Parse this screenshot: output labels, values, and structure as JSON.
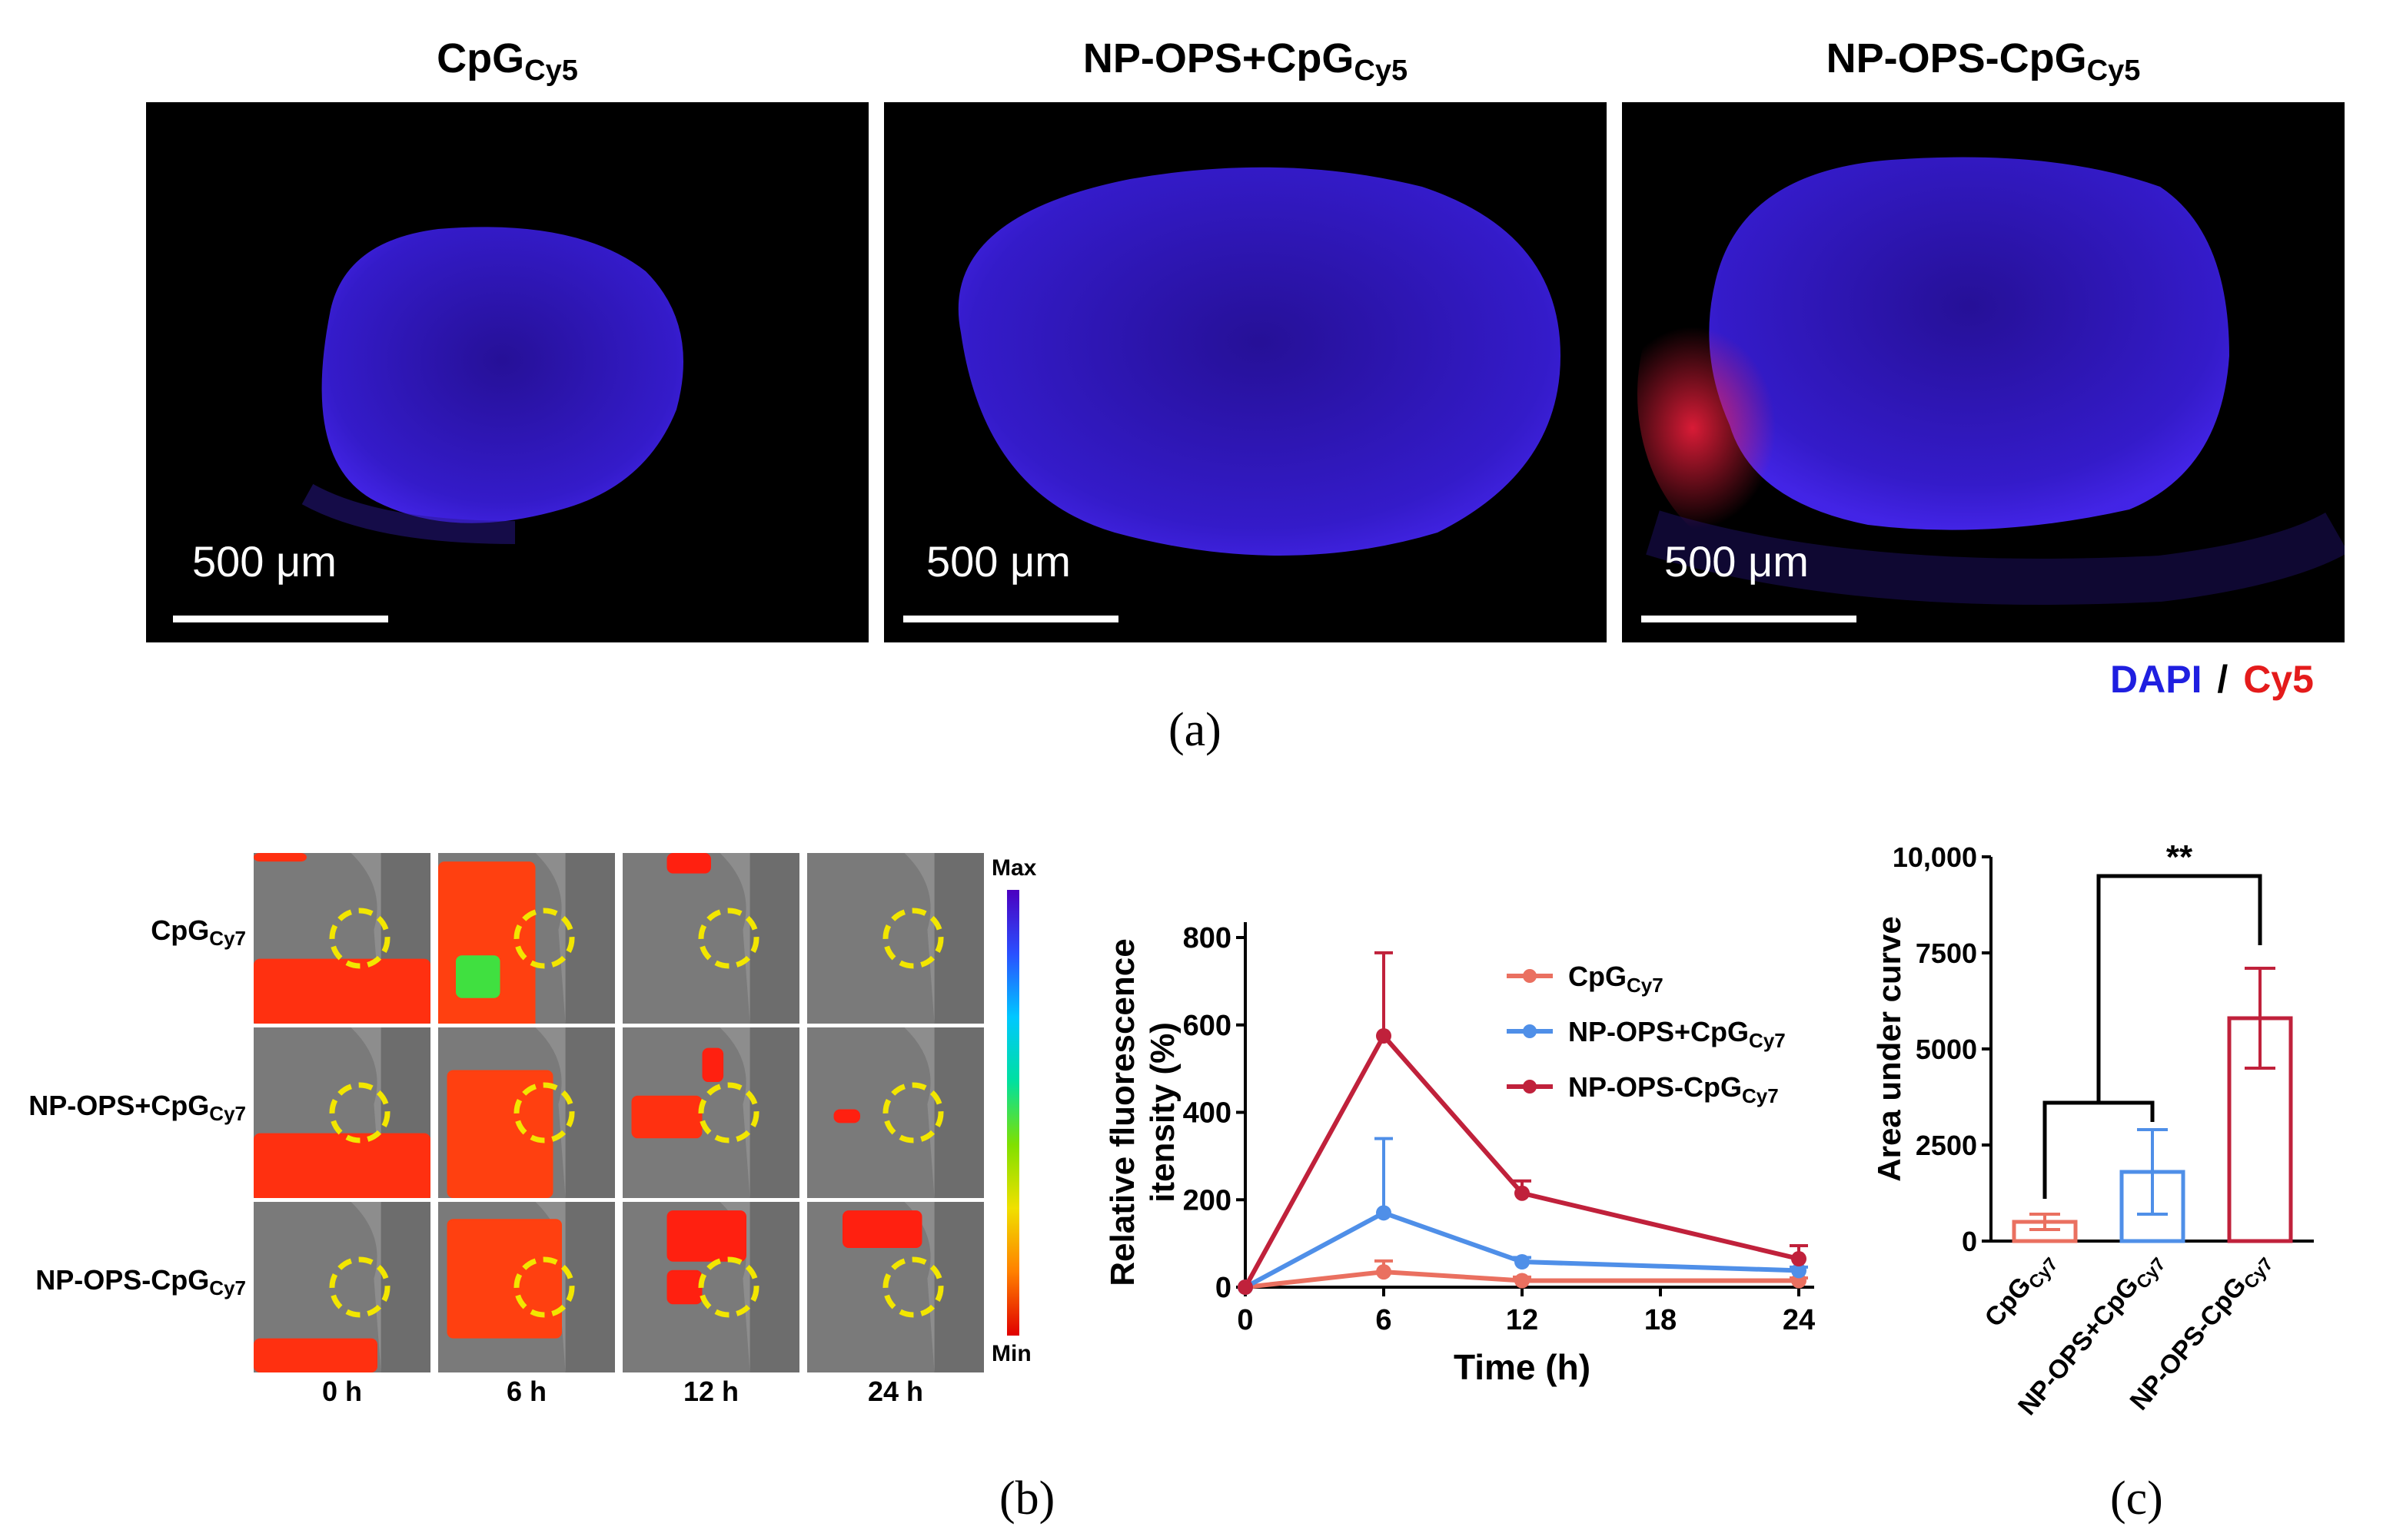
{
  "panel_a": {
    "titles": [
      {
        "main": "CpG",
        "sub": "Cy5"
      },
      {
        "main": "NP-OPS+CpG",
        "sub": "Cy5"
      },
      {
        "main": "NP-OPS-CpG",
        "sub": "Cy5"
      }
    ],
    "scale_label": "500 μm",
    "legend": {
      "dapi": "DAPI",
      "sep": "/",
      "cy5": "Cy5",
      "dapi_color": "#1f1fe0",
      "cy5_color": "#e41b1b"
    },
    "caption": "(a)"
  },
  "panel_b": {
    "rows": [
      {
        "main": "CpG",
        "sub": "Cy7"
      },
      {
        "main": "NP-OPS+CpG",
        "sub": "Cy7"
      },
      {
        "main": "NP-OPS-CpG",
        "sub": "Cy7"
      }
    ],
    "cols": [
      "0 h",
      "6 h",
      "12 h",
      "24 h"
    ],
    "colorbar": {
      "max": "Max",
      "min": "Min"
    },
    "caption": "(b)"
  },
  "panel_c": {
    "caption": "(c)"
  },
  "chart_data": [
    {
      "type": "line",
      "xlabel": "Time (h)",
      "ylabel_lines": [
        "Relative fluorescence",
        "itensity (%)"
      ],
      "x": [
        0,
        6,
        12,
        18,
        24
      ],
      "xlim": [
        0,
        24
      ],
      "ylim": [
        0,
        800
      ],
      "xticks": [
        "0",
        "6",
        "12",
        "18",
        "24"
      ],
      "yticks": [
        "0",
        "200",
        "400",
        "600",
        "800"
      ],
      "series": [
        {
          "name": "CpG",
          "sub": "Cy7",
          "color": "#ea7060",
          "x": [
            0,
            6,
            12,
            24
          ],
          "values": [
            0,
            35,
            15,
            15
          ],
          "errors": [
            0,
            25,
            8,
            6
          ]
        },
        {
          "name": "NP-OPS+CpG",
          "sub": "Cy7",
          "color": "#4f8fe8",
          "x": [
            0,
            6,
            12,
            24
          ],
          "values": [
            0,
            170,
            58,
            38
          ],
          "errors": [
            0,
            170,
            10,
            8
          ]
        },
        {
          "name": "NP-OPS-CpG",
          "sub": "Cy7",
          "color": "#c0213b",
          "x": [
            0,
            6,
            12,
            24
          ],
          "values": [
            0,
            575,
            215,
            65
          ],
          "errors": [
            0,
            190,
            28,
            30
          ]
        }
      ]
    },
    {
      "type": "bar",
      "ylabel": "Area under curve",
      "ylim": [
        0,
        10000
      ],
      "yticks": [
        "0",
        "2500",
        "5000",
        "7500",
        "10,000"
      ],
      "categories": [
        {
          "main": "CpG",
          "sub": "Cy7",
          "color": "#ea7060"
        },
        {
          "main": "NP-OPS+CpG",
          "sub": "Cy7",
          "color": "#4f8fe8"
        },
        {
          "main": "NP-OPS-CpG",
          "sub": "Cy7",
          "color": "#c0213b"
        }
      ],
      "values": [
        500,
        1800,
        5800
      ],
      "errors": [
        200,
        1100,
        1300
      ],
      "significance": "**"
    }
  ]
}
